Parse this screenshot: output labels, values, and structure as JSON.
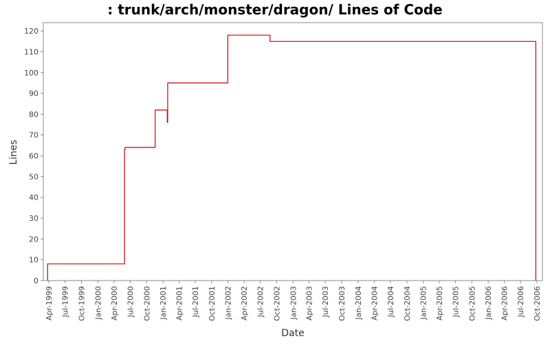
{
  "chart_data": {
    "type": "line",
    "step": true,
    "title": ": trunk/arch/monster/dragon/ Lines of Code",
    "xlabel": "Date",
    "ylabel": "Lines",
    "ylim": [
      0,
      124
    ],
    "xlim": [
      "1999-03-01",
      "2006-11-01"
    ],
    "grid": false,
    "y_ticks": [
      0,
      10,
      20,
      30,
      40,
      50,
      60,
      70,
      80,
      90,
      100,
      110,
      120
    ],
    "x_ticks": [
      "Apr-1999",
      "Jul-1999",
      "Oct-1999",
      "Jan-2000",
      "Apr-2000",
      "Jul-2000",
      "Oct-2000",
      "Jan-2001",
      "Apr-2001",
      "Jul-2001",
      "Oct-2001",
      "Jan-2002",
      "Apr-2002",
      "Jul-2002",
      "Oct-2002",
      "Jan-2003",
      "Apr-2003",
      "Jul-2003",
      "Oct-2003",
      "Jan-2004",
      "Apr-2004",
      "Jul-2004",
      "Oct-2004",
      "Jan-2005",
      "Apr-2005",
      "Jul-2005",
      "Oct-2005",
      "Jan-2006",
      "Apr-2006",
      "Jul-2006",
      "Oct-2006"
    ],
    "x_tick_dates": [
      "1999-04-01",
      "1999-07-01",
      "1999-10-01",
      "2000-01-01",
      "2000-04-01",
      "2000-07-01",
      "2000-10-01",
      "2001-01-01",
      "2001-04-01",
      "2001-07-01",
      "2001-10-01",
      "2002-01-01",
      "2002-04-01",
      "2002-07-01",
      "2002-10-01",
      "2003-01-01",
      "2003-04-01",
      "2003-07-01",
      "2003-10-01",
      "2004-01-01",
      "2004-04-01",
      "2004-07-01",
      "2004-10-01",
      "2005-01-01",
      "2005-04-01",
      "2005-07-01",
      "2005-10-01",
      "2006-01-01",
      "2006-04-01",
      "2006-07-01",
      "2006-10-01"
    ],
    "series": [
      {
        "color": "#cc0000",
        "points": [
          {
            "x": "1999-03-25",
            "y": 0
          },
          {
            "x": "1999-03-25",
            "y": 8
          },
          {
            "x": "2000-05-30",
            "y": 8
          },
          {
            "x": "2000-05-30",
            "y": 63
          },
          {
            "x": "2000-06-02",
            "y": 63
          },
          {
            "x": "2000-06-02",
            "y": 64
          },
          {
            "x": "2000-11-18",
            "y": 64
          },
          {
            "x": "2000-11-18",
            "y": 82
          },
          {
            "x": "2001-01-25",
            "y": 82
          },
          {
            "x": "2001-01-25",
            "y": 76
          },
          {
            "x": "2001-01-27",
            "y": 76
          },
          {
            "x": "2001-01-27",
            "y": 95
          },
          {
            "x": "2001-12-31",
            "y": 95
          },
          {
            "x": "2001-12-31",
            "y": 118
          },
          {
            "x": "2002-08-25",
            "y": 118
          },
          {
            "x": "2002-08-25",
            "y": 115
          },
          {
            "x": "2006-09-25",
            "y": 115
          },
          {
            "x": "2006-09-25",
            "y": 0
          }
        ]
      }
    ]
  }
}
